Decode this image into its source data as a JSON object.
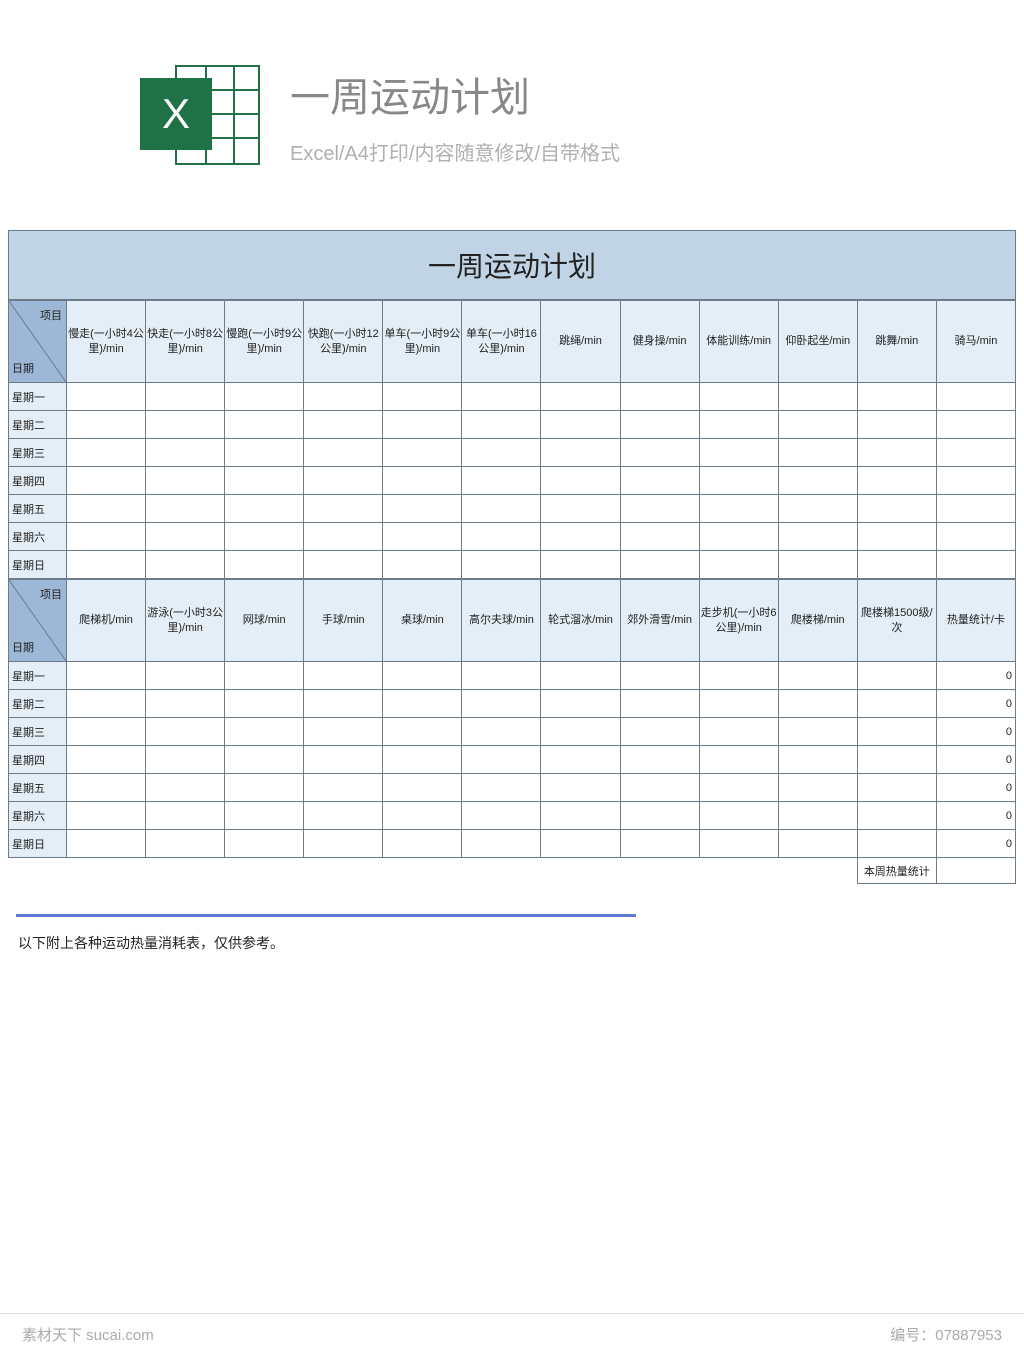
{
  "header": {
    "icon_letter": "X",
    "title": "一周运动计划",
    "subtitle": "Excel/A4打印/内容随意修改/自带格式"
  },
  "sheet": {
    "main_title": "一周运动计划",
    "corner_top": "项目",
    "corner_bottom": "日期",
    "days": [
      "星期一",
      "星期二",
      "星期三",
      "星期四",
      "星期五",
      "星期六",
      "星期日"
    ],
    "section1_cols": [
      "慢走(一小时4公里)/min",
      "快走(一小时8公里)/min",
      "慢跑(一小时9公里)/min",
      "快跑(一小时12公里)/min",
      "单车(一小时9公里)/min",
      "单车(一小时16公里)/min",
      "跳绳/min",
      "健身操/min",
      "体能训练/min",
      "仰卧起坐/min",
      "跳舞/min",
      "骑马/min"
    ],
    "section2_cols": [
      "爬梯机/min",
      "游泳(一小时3公里)/min",
      "网球/min",
      "手球/min",
      "桌球/min",
      "高尔夫球/min",
      "轮式溜冰/min",
      "郊外滑雪/min",
      "走步机(一小时6公里)/min",
      "爬楼梯/min",
      "爬楼梯1500级/次",
      "热量统计/卡"
    ],
    "zero_value": "0",
    "summary_label": "本周热量统计",
    "note": "以下附上各种运动热量消耗表，仅供参考。"
  },
  "footer": {
    "left": "素材天下  sucai.com",
    "right_label": "编号：",
    "right_value": "07887953"
  },
  "colors": {
    "title_bg": "#c1d4e6",
    "header_bg": "#e3eef7",
    "corner_bg": "#9cb8d6",
    "border": "#6b7b8c",
    "excel_green": "#1f7246",
    "divider": "#5b7bd5"
  }
}
